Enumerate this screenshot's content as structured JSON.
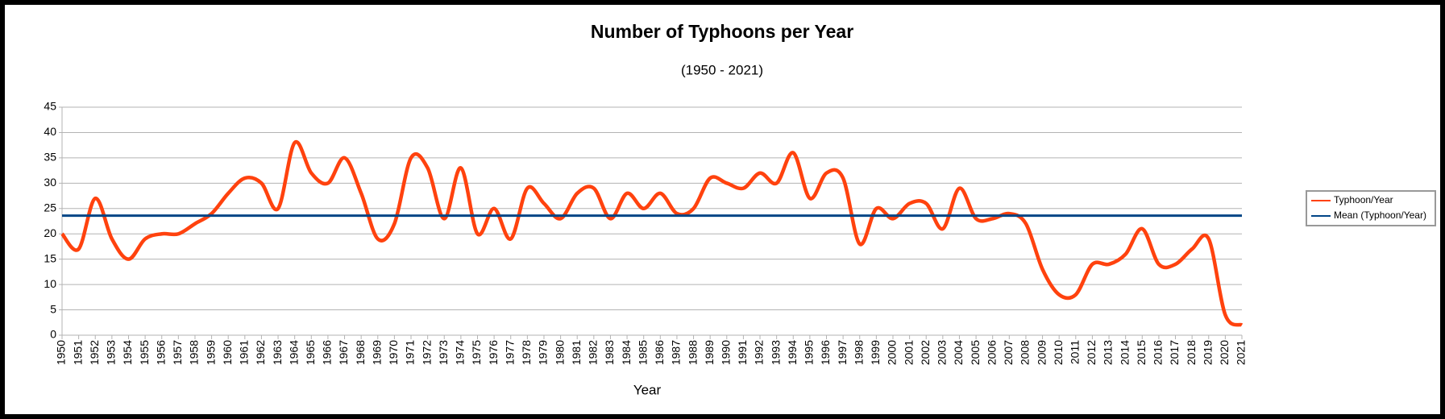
{
  "chart_data": {
    "type": "line",
    "title": "Number of Typhoons per Year",
    "subtitle": "(1950 - 2021)",
    "x_label": "Year",
    "x": [
      1950,
      1951,
      1952,
      1953,
      1954,
      1955,
      1956,
      1957,
      1958,
      1959,
      1960,
      1961,
      1962,
      1963,
      1964,
      1965,
      1966,
      1967,
      1968,
      1969,
      1970,
      1971,
      1972,
      1973,
      1974,
      1975,
      1976,
      1977,
      1978,
      1979,
      1980,
      1981,
      1982,
      1983,
      1984,
      1985,
      1986,
      1987,
      1988,
      1989,
      1990,
      1991,
      1992,
      1993,
      1994,
      1995,
      1996,
      1997,
      1998,
      1999,
      2000,
      2001,
      2002,
      2003,
      2004,
      2005,
      2006,
      2007,
      2008,
      2009,
      2010,
      2011,
      2012,
      2013,
      2014,
      2015,
      2016,
      2017,
      2018,
      2019,
      2020,
      2021
    ],
    "series": [
      {
        "name": "Typhoon/Year",
        "color": "#ff420e",
        "values": [
          20,
          17,
          27,
          19,
          15,
          19,
          20,
          20,
          22,
          24,
          28,
          31,
          30,
          25,
          38,
          32,
          30,
          35,
          28,
          19,
          22,
          35,
          33,
          23,
          33,
          20,
          25,
          19,
          29,
          26,
          23,
          28,
          29,
          23,
          28,
          25,
          28,
          24,
          25,
          31,
          30,
          29,
          32,
          30,
          36,
          27,
          32,
          31,
          18,
          25,
          23,
          26,
          26,
          21,
          29,
          23,
          23,
          24,
          22,
          13,
          8,
          8,
          14,
          14,
          16,
          21,
          14,
          14,
          17,
          19,
          4,
          2
        ]
      },
      {
        "name": "Mean (Typhoon/Year)",
        "color": "#004586",
        "values": [
          23.6,
          23.6,
          23.6,
          23.6,
          23.6,
          23.6,
          23.6,
          23.6,
          23.6,
          23.6,
          23.6,
          23.6,
          23.6,
          23.6,
          23.6,
          23.6,
          23.6,
          23.6,
          23.6,
          23.6,
          23.6,
          23.6,
          23.6,
          23.6,
          23.6,
          23.6,
          23.6,
          23.6,
          23.6,
          23.6,
          23.6,
          23.6,
          23.6,
          23.6,
          23.6,
          23.6,
          23.6,
          23.6,
          23.6,
          23.6,
          23.6,
          23.6,
          23.6,
          23.6,
          23.6,
          23.6,
          23.6,
          23.6,
          23.6,
          23.6,
          23.6,
          23.6,
          23.6,
          23.6,
          23.6,
          23.6,
          23.6,
          23.6,
          23.6,
          23.6,
          23.6,
          23.6,
          23.6,
          23.6,
          23.6,
          23.6,
          23.6,
          23.6,
          23.6,
          23.6,
          23.6,
          23.6
        ]
      }
    ],
    "xlim": [
      1950,
      2021
    ],
    "ylim": [
      0,
      45
    ],
    "yticks": [
      0,
      5,
      10,
      15,
      20,
      25,
      30,
      35,
      40,
      45
    ],
    "grid": true,
    "legend": "right"
  }
}
